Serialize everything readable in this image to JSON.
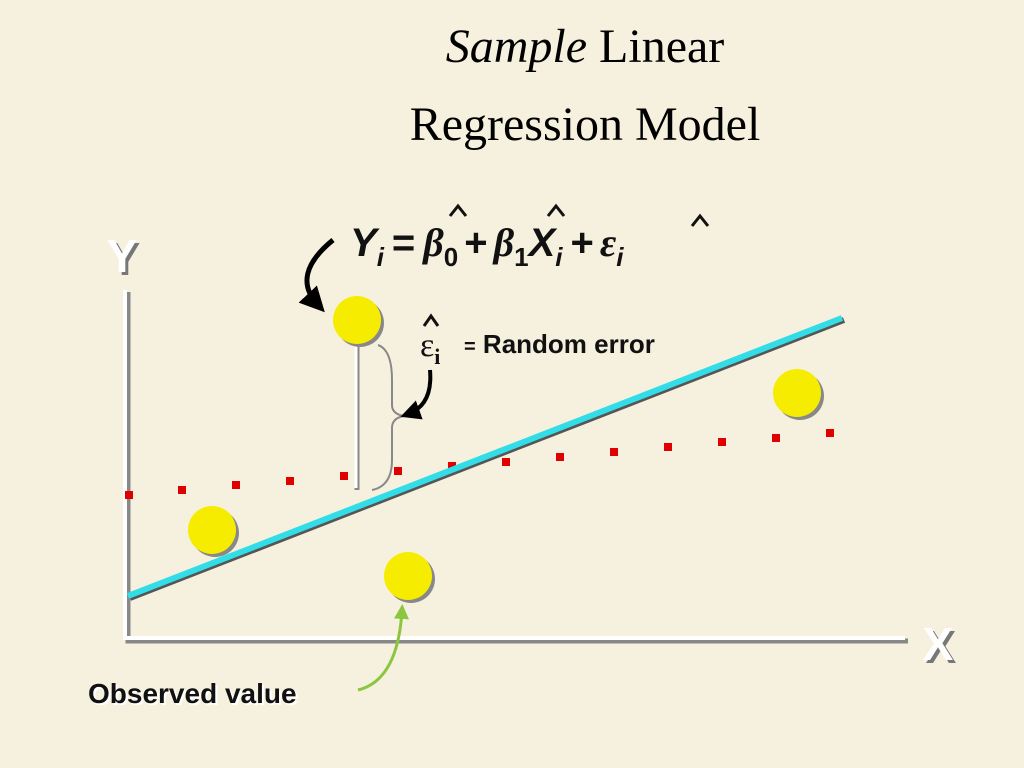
{
  "title": {
    "italic": "Sample",
    "rest": "Linear",
    "line2": "Regression Model"
  },
  "axes": {
    "y": "Y",
    "x": "X"
  },
  "equation": {
    "parts": [
      "Y",
      "i",
      "=",
      "β",
      "0",
      "+",
      "β",
      "1",
      "X",
      "i",
      "+",
      "ε",
      "i"
    ]
  },
  "error_label": {
    "symbol": "ε",
    "sub": "i",
    "equals": "=",
    "text": "Random error"
  },
  "observed_label": "Observed value"
}
